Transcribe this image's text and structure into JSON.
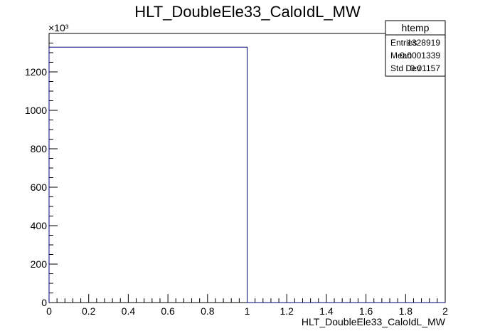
{
  "chart_data": {
    "type": "bar",
    "title": "HLT_DoubleEle33_CaloIdL_MW",
    "xlabel": "HLT_DoubleEle33_CaloIdL_MW",
    "ylabel": "",
    "xlim": [
      0,
      2
    ],
    "ylim": [
      0,
      1400
    ],
    "y_multiplier": "×10³",
    "bins": [
      {
        "x_low": 0,
        "x_high": 1,
        "value": 1328.919
      },
      {
        "x_low": 1,
        "x_high": 2,
        "value": 0
      }
    ],
    "x_ticks": [
      "0",
      "0.2",
      "0.4",
      "0.6",
      "0.8",
      "1",
      "1.2",
      "1.4",
      "1.6",
      "1.8",
      "2"
    ],
    "y_ticks": [
      "0",
      "200",
      "400",
      "600",
      "800",
      "1000",
      "1200"
    ],
    "line_color": "#00007f",
    "grid": false
  },
  "stats_box": {
    "title": "htemp",
    "rows": [
      {
        "label": "Entries",
        "value": "1328919"
      },
      {
        "label": "Mean",
        "value": "0.0001339"
      },
      {
        "label": "Std Dev",
        "value": "0.01157"
      }
    ]
  }
}
